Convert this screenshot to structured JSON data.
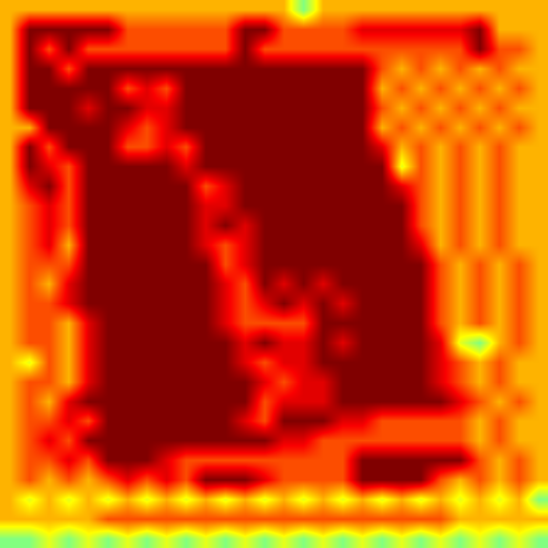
{
  "chart_data": {
    "type": "heatmap",
    "color": "Jet",
    "tick_labels": false,
    "zlim": [
      0,
      10
    ],
    "z": [
      [
        7,
        7,
        7,
        7,
        7,
        7,
        7,
        7,
        7,
        7,
        7,
        7,
        7,
        7,
        7,
        5,
        7,
        7,
        7,
        7,
        7,
        7,
        7,
        7,
        7,
        7,
        7,
        7
      ],
      [
        7,
        10,
        10,
        10,
        10,
        10,
        8,
        8,
        8,
        8,
        8,
        8,
        10,
        10,
        8,
        8,
        8,
        8,
        9,
        9,
        9,
        9,
        9,
        9,
        10,
        7,
        7,
        7
      ],
      [
        7,
        10,
        8,
        10,
        8,
        8,
        8,
        8,
        8,
        8,
        8,
        8,
        10,
        8,
        8,
        8,
        8,
        8,
        8,
        8,
        8,
        8,
        8,
        8,
        10,
        8,
        8,
        7
      ],
      [
        7,
        10,
        10,
        8,
        10,
        10,
        10,
        10,
        10,
        10,
        10,
        10,
        10,
        10,
        10,
        10,
        10,
        10,
        10,
        8,
        7,
        8,
        7,
        8,
        7,
        8,
        7,
        7
      ],
      [
        7,
        10,
        10,
        10,
        10,
        10,
        8,
        9,
        8,
        10,
        10,
        10,
        10,
        10,
        10,
        10,
        10,
        10,
        10,
        7,
        8,
        7,
        8,
        7,
        8,
        7,
        8,
        7
      ],
      [
        7,
        10,
        10,
        10,
        9,
        10,
        10,
        9,
        9,
        10,
        10,
        10,
        10,
        10,
        10,
        10,
        10,
        10,
        10,
        8,
        7,
        8,
        7,
        8,
        7,
        8,
        7,
        7
      ],
      [
        7,
        7,
        10,
        10,
        10,
        10,
        9,
        8,
        9,
        10,
        10,
        10,
        10,
        10,
        10,
        10,
        10,
        10,
        10,
        7,
        8,
        7,
        8,
        7,
        8,
        7,
        8,
        7
      ],
      [
        7,
        10,
        8,
        10,
        10,
        10,
        8,
        8,
        9,
        8,
        10,
        10,
        10,
        10,
        10,
        10,
        10,
        10,
        10,
        9,
        7,
        8,
        7,
        8,
        7,
        8,
        7,
        7
      ],
      [
        7,
        10,
        9,
        8,
        10,
        10,
        10,
        10,
        10,
        9,
        10,
        10,
        10,
        10,
        10,
        10,
        10,
        10,
        10,
        10,
        6,
        8,
        7,
        8,
        7,
        8,
        7,
        7
      ],
      [
        7,
        9,
        10,
        8,
        10,
        10,
        10,
        10,
        10,
        10,
        8,
        9,
        10,
        10,
        10,
        10,
        10,
        10,
        10,
        10,
        9,
        8,
        7,
        8,
        7,
        8,
        7,
        7
      ],
      [
        7,
        8,
        9,
        8,
        10,
        10,
        10,
        10,
        10,
        10,
        9,
        9,
        10,
        10,
        10,
        10,
        10,
        10,
        10,
        10,
        10,
        8,
        7,
        8,
        7,
        8,
        7,
        7
      ],
      [
        7,
        8,
        9,
        8,
        10,
        10,
        10,
        10,
        10,
        10,
        9,
        10,
        9,
        10,
        10,
        10,
        10,
        10,
        10,
        10,
        10,
        8,
        7,
        8,
        7,
        8,
        7,
        7
      ],
      [
        7,
        8,
        9,
        7,
        10,
        10,
        10,
        10,
        10,
        10,
        9,
        8,
        9,
        10,
        10,
        10,
        10,
        10,
        10,
        10,
        10,
        9,
        7,
        8,
        7,
        8,
        7,
        7
      ],
      [
        7,
        8,
        8,
        8,
        10,
        10,
        10,
        10,
        10,
        10,
        10,
        8,
        9,
        10,
        10,
        10,
        10,
        10,
        10,
        10,
        10,
        10,
        8,
        7,
        8,
        7,
        8,
        7
      ],
      [
        7,
        8,
        7,
        9,
        10,
        10,
        10,
        10,
        10,
        10,
        10,
        9,
        8,
        10,
        9,
        10,
        9,
        10,
        10,
        10,
        10,
        10,
        8,
        7,
        8,
        7,
        8,
        7
      ],
      [
        7,
        8,
        8,
        9,
        10,
        10,
        10,
        10,
        10,
        10,
        10,
        9,
        8,
        9,
        10,
        9,
        10,
        9,
        10,
        10,
        10,
        10,
        8,
        7,
        8,
        7,
        8,
        7
      ],
      [
        7,
        8,
        8,
        7,
        9,
        10,
        10,
        10,
        10,
        10,
        10,
        9,
        8,
        8,
        8,
        8,
        10,
        10,
        10,
        10,
        10,
        10,
        8,
        7,
        8,
        7,
        8,
        7
      ],
      [
        7,
        8,
        8,
        7,
        9,
        10,
        10,
        10,
        10,
        10,
        10,
        10,
        9,
        10,
        9,
        9,
        10,
        9,
        10,
        10,
        10,
        10,
        9,
        6,
        5,
        7,
        8,
        7
      ],
      [
        7,
        6,
        8,
        7,
        9,
        10,
        10,
        10,
        10,
        10,
        10,
        10,
        9,
        8,
        9,
        9,
        10,
        10,
        10,
        10,
        10,
        10,
        9,
        8,
        7,
        8,
        7,
        7
      ],
      [
        7,
        8,
        8,
        7,
        9,
        10,
        10,
        10,
        10,
        10,
        10,
        10,
        10,
        9,
        8,
        9,
        9,
        10,
        10,
        10,
        10,
        10,
        9,
        8,
        7,
        8,
        7,
        7
      ],
      [
        7,
        8,
        7,
        9,
        10,
        10,
        10,
        10,
        10,
        10,
        10,
        10,
        10,
        8,
        9,
        9,
        9,
        10,
        10,
        10,
        10,
        10,
        10,
        9,
        8,
        7,
        8,
        7
      ],
      [
        7,
        8,
        8,
        9,
        8,
        10,
        10,
        10,
        10,
        10,
        10,
        10,
        9,
        8,
        10,
        10,
        10,
        9,
        9,
        8,
        8,
        8,
        8,
        8,
        7,
        8,
        7,
        7
      ],
      [
        7,
        8,
        9,
        8,
        10,
        10,
        10,
        10,
        10,
        10,
        10,
        10,
        10,
        10,
        9,
        9,
        8,
        8,
        8,
        8,
        8,
        8,
        8,
        8,
        7,
        8,
        7,
        7
      ],
      [
        7,
        8,
        8,
        9,
        8,
        10,
        10,
        10,
        9,
        8,
        8,
        8,
        8,
        8,
        8,
        8,
        8,
        8,
        10,
        10,
        10,
        10,
        10,
        10,
        8,
        7,
        8,
        7
      ],
      [
        7,
        8,
        7,
        8,
        7,
        8,
        9,
        8,
        9,
        8,
        10,
        10,
        10,
        9,
        8,
        8,
        8,
        8,
        10,
        10,
        10,
        10,
        8,
        7,
        8,
        7,
        8,
        7
      ],
      [
        7,
        6,
        7,
        6,
        7,
        6,
        7,
        6,
        7,
        6,
        7,
        6,
        7,
        6,
        7,
        6,
        7,
        6,
        7,
        6,
        7,
        6,
        7,
        6,
        7,
        6,
        7,
        5
      ],
      [
        7,
        7,
        7,
        7,
        7,
        8,
        8,
        8,
        8,
        8,
        8,
        8,
        8,
        8,
        8,
        8,
        8,
        8,
        8,
        8,
        8,
        8,
        8,
        7,
        7,
        7,
        7,
        7
      ],
      [
        5,
        5,
        6,
        5,
        6,
        5,
        6,
        5,
        6,
        5,
        6,
        5,
        6,
        5,
        6,
        5,
        6,
        5,
        6,
        5,
        6,
        5,
        6,
        5,
        6,
        5,
        6,
        5
      ]
    ]
  }
}
